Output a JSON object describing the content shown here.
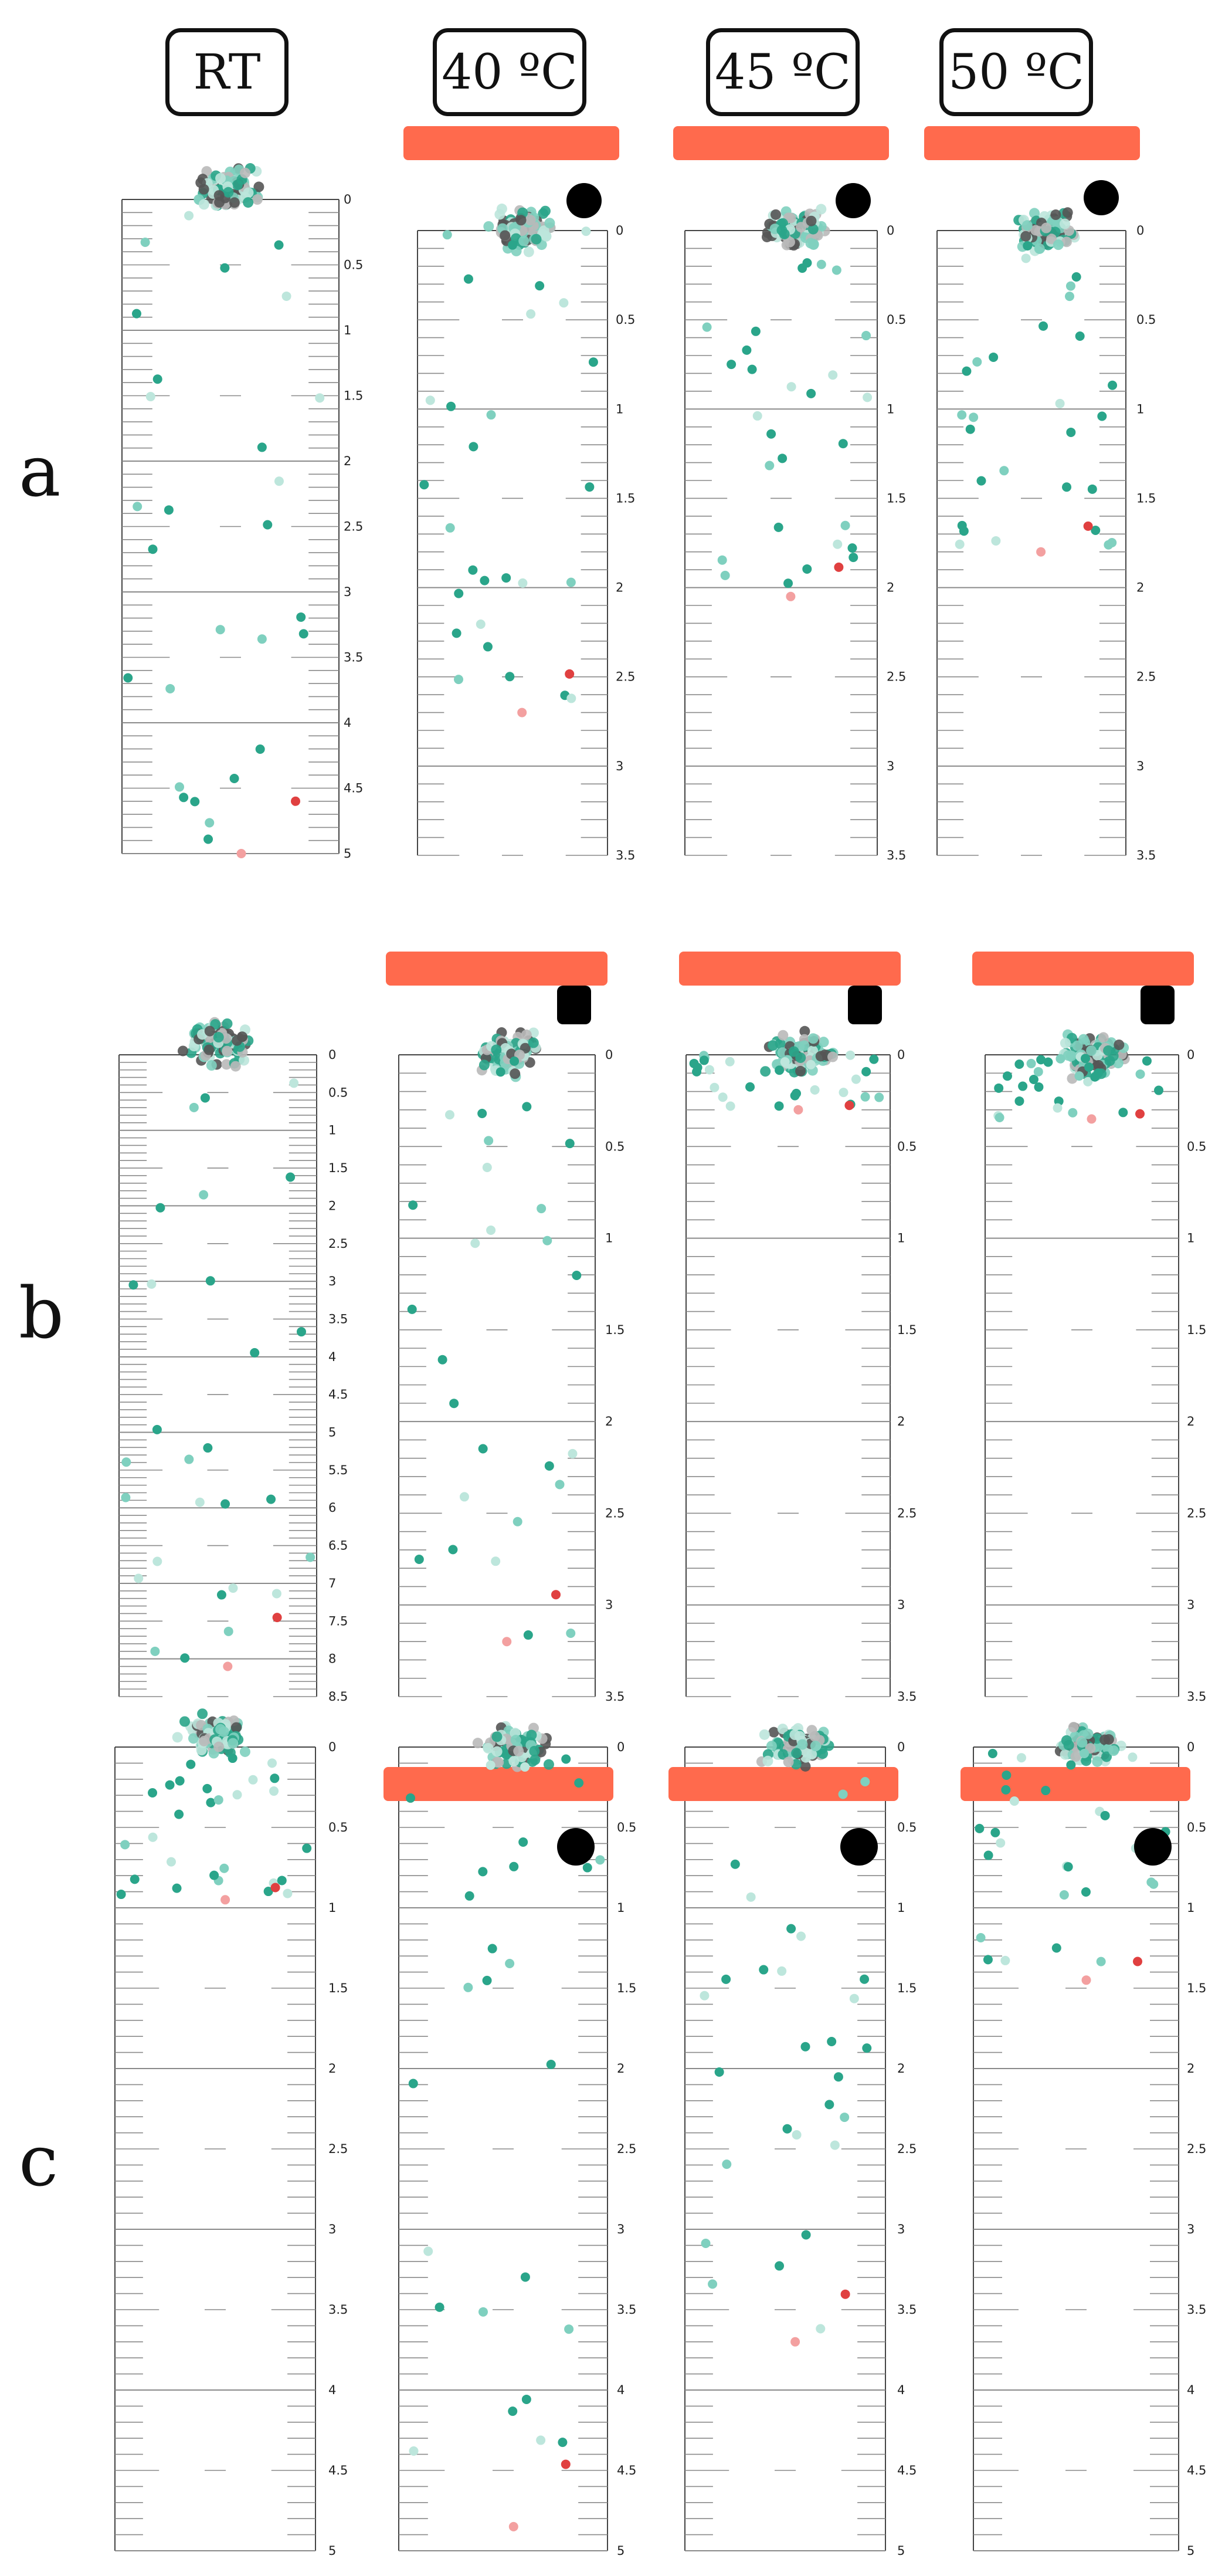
{
  "headers": [
    "RT",
    "40 ºC",
    "45 ºC",
    "50 ºC"
  ],
  "row_labels": [
    "a",
    "b",
    "c"
  ],
  "colors": {
    "ruler_line": "#8a8a8a",
    "heater_bar": "#ff6a4d",
    "block": "#000000",
    "teal": "#2aa58a",
    "teal_light": "#7fd0bf",
    "teal_pale": "#bde6dc",
    "gray_dark": "#555555",
    "gray_light": "#b9b9b9",
    "red": "#e04040",
    "pink": "#f3a0a0"
  },
  "panels": [
    {
      "id": "a-rt",
      "row": "a",
      "condition": "RT",
      "heater": false,
      "object": "none",
      "ticks": [
        "0",
        "0.5",
        "1",
        "1.5",
        "2",
        "2.5",
        "3",
        "3.5",
        "4",
        "4.5",
        "5"
      ],
      "max": 5,
      "dot_extent": 5
    },
    {
      "id": "a-40",
      "row": "a",
      "condition": "40 ºC",
      "heater": true,
      "object": "circle",
      "ticks": [
        "0",
        "0.5",
        "1",
        "1.5",
        "2",
        "2.5",
        "3",
        "3.5"
      ],
      "max": 3.5,
      "dot_extent": 2.7
    },
    {
      "id": "a-45",
      "row": "a",
      "condition": "45 ºC",
      "heater": true,
      "object": "circle",
      "ticks": [
        "0",
        "0.5",
        "1",
        "1.5",
        "2",
        "2.5",
        "3",
        "3.5"
      ],
      "max": 3.5,
      "dot_extent": 2.05
    },
    {
      "id": "a-50",
      "row": "a",
      "condition": "50 ºC",
      "heater": true,
      "object": "circle",
      "ticks": [
        "0",
        "0.5",
        "1",
        "1.5",
        "2",
        "2.5",
        "3",
        "3.5"
      ],
      "max": 3.5,
      "dot_extent": 1.8
    },
    {
      "id": "b-rt",
      "row": "b",
      "condition": "RT",
      "heater": false,
      "object": "none",
      "ticks": [
        "0",
        "0.5",
        "1",
        "1.5",
        "2",
        "2.5",
        "3",
        "3.5",
        "4",
        "4.5",
        "5",
        "5.5",
        "6",
        "6.5",
        "7",
        "7.5",
        "8",
        "8.5"
      ],
      "max": 8.5,
      "dot_extent": 8.1
    },
    {
      "id": "b-40",
      "row": "b",
      "condition": "40 ºC",
      "heater": true,
      "object": "square",
      "ticks": [
        "0",
        "0.5",
        "1",
        "1.5",
        "2",
        "2.5",
        "3",
        "3.5"
      ],
      "max": 3.5,
      "dot_extent": 3.2
    },
    {
      "id": "b-45",
      "row": "b",
      "condition": "45 ºC",
      "heater": true,
      "object": "square",
      "ticks": [
        "0",
        "0.5",
        "1",
        "1.5",
        "2",
        "2.5",
        "3",
        "3.5"
      ],
      "max": 3.5,
      "dot_extent": 0.3
    },
    {
      "id": "b-50",
      "row": "b",
      "condition": "50 ºC",
      "heater": true,
      "object": "square",
      "ticks": [
        "0",
        "0.5",
        "1",
        "1.5",
        "2",
        "2.5",
        "3",
        "3.5"
      ],
      "max": 3.5,
      "dot_extent": 0.35
    },
    {
      "id": "c-rt",
      "row": "c",
      "condition": "RT",
      "heater": false,
      "object": "none",
      "ticks": [
        "0",
        "0.5",
        "1",
        "1.5",
        "2",
        "2.5",
        "3",
        "3.5",
        "4",
        "4.5",
        "5"
      ],
      "max": 5,
      "dot_extent": 0.95
    },
    {
      "id": "c-40",
      "row": "c",
      "condition": "40 ºC",
      "heater": true,
      "object": "circle",
      "ticks": [
        "0",
        "0.5",
        "1",
        "1.5",
        "2",
        "2.5",
        "3",
        "3.5",
        "4",
        "4.5",
        "5"
      ],
      "max": 5,
      "dot_extent": 4.85
    },
    {
      "id": "c-45",
      "row": "c",
      "condition": "45 ºC",
      "heater": true,
      "object": "circle",
      "ticks": [
        "0",
        "0.5",
        "1",
        "1.5",
        "2",
        "2.5",
        "3",
        "3.5",
        "4",
        "4.5",
        "5"
      ],
      "max": 5,
      "dot_extent": 3.7
    },
    {
      "id": "c-50",
      "row": "c",
      "condition": "50 ºC",
      "heater": true,
      "object": "circle",
      "ticks": [
        "0",
        "0.5",
        "1",
        "1.5",
        "2",
        "2.5",
        "3",
        "3.5",
        "4",
        "4.5",
        "5"
      ],
      "max": 5,
      "dot_extent": 1.45
    }
  ]
}
